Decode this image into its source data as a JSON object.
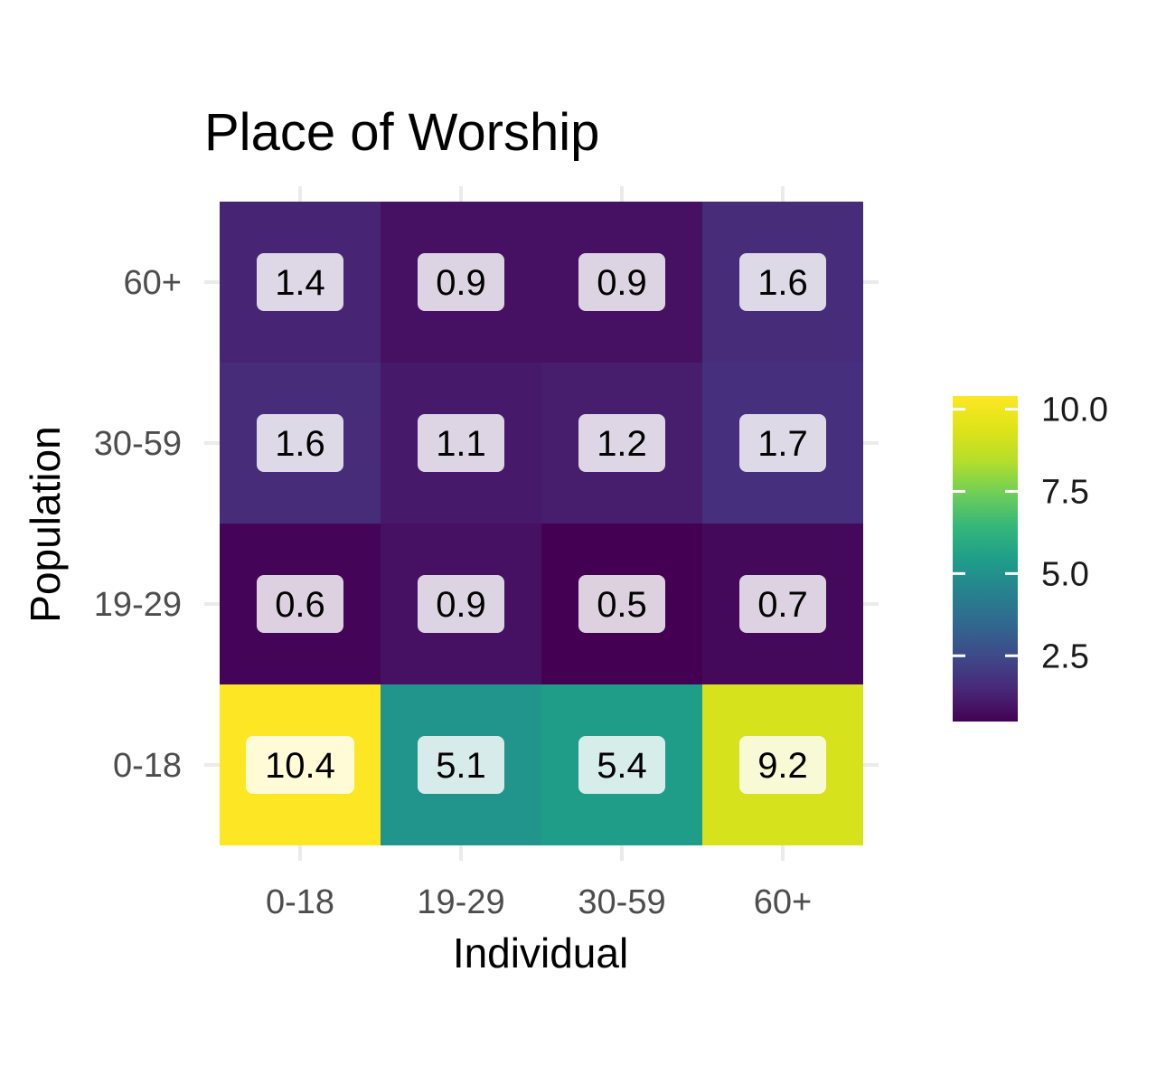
{
  "chart_data": {
    "type": "heatmap",
    "title": "Place of Worship",
    "xlabel": "Individual",
    "ylabel": "Population",
    "x_categories": [
      "0-18",
      "19-29",
      "30-59",
      "60+"
    ],
    "y_categories": [
      "0-18",
      "19-29",
      "30-59",
      "60+"
    ],
    "values": [
      [
        10.4,
        5.1,
        5.4,
        9.2
      ],
      [
        0.6,
        0.9,
        0.5,
        0.7
      ],
      [
        1.6,
        1.1,
        1.2,
        1.7
      ],
      [
        1.4,
        0.9,
        0.9,
        1.6
      ]
    ],
    "labels": [
      [
        "10.4",
        "5.1",
        "5.4",
        "9.2"
      ],
      [
        "0.6",
        "0.9",
        "0.5",
        "0.7"
      ],
      [
        "1.6",
        "1.1",
        "1.2",
        "1.7"
      ],
      [
        "1.4",
        "0.9",
        "0.9",
        "1.6"
      ]
    ],
    "color_scale": "viridis",
    "color_range": [
      0.5,
      10.4
    ],
    "legend": {
      "position": "right",
      "ticks": [
        2.5,
        5.0,
        7.5,
        10.0
      ],
      "tick_labels": [
        "2.5",
        "5.0",
        "7.5",
        "10.0"
      ]
    },
    "grid": true
  }
}
